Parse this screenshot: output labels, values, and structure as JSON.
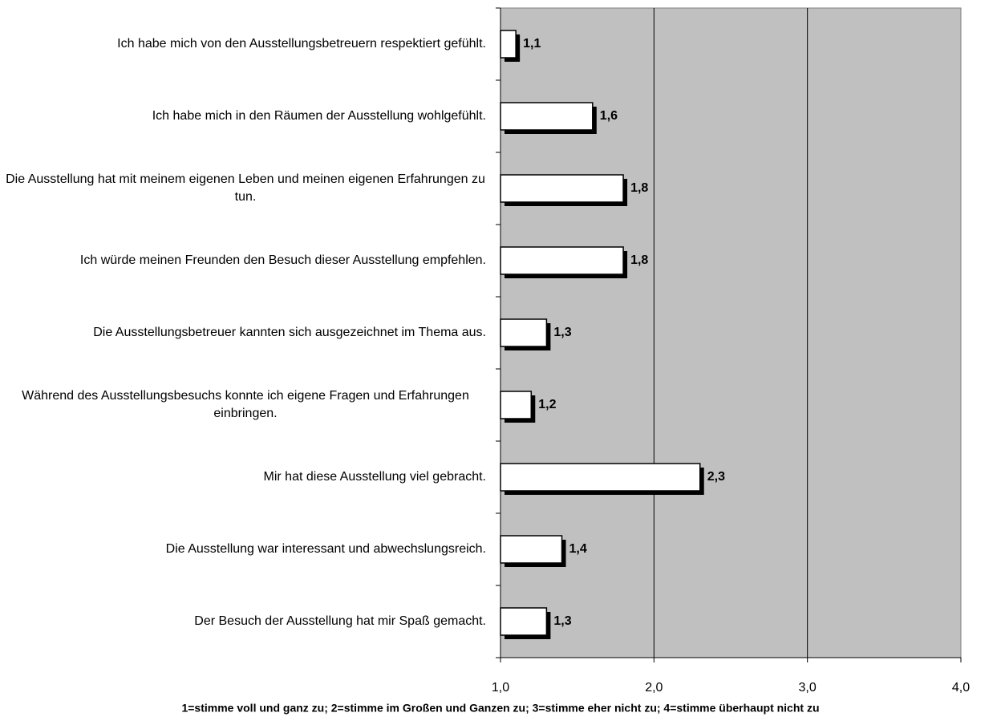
{
  "chart_data": {
    "type": "bar",
    "orientation": "horizontal",
    "categories": [
      "Ich habe mich von den Ausstellungsbetreuern respektiert gefühlt.",
      "Ich habe mich in den Räumen der Ausstellung wohlgefühlt.",
      "Die Ausstellung hat mit meinem eigenen Leben und meinen eigenen Erfahrungen zu tun.",
      "Ich würde meinen Freunden den Besuch dieser Ausstellung empfehlen.",
      "Die Ausstellungsbetreuer kannten sich ausgezeichnet im Thema aus.",
      "Während des Ausstellungsbesuchs konnte ich eigene Fragen und Erfahrungen einbringen.",
      "Mir hat diese Ausstellung viel gebracht.",
      "Die Ausstellung war interessant und abwechslungsreich.",
      "Der Besuch der Ausstellung hat mir Spaß gemacht."
    ],
    "values": [
      1.1,
      1.6,
      1.8,
      1.8,
      1.3,
      1.2,
      2.3,
      1.4,
      1.3
    ],
    "value_labels": [
      "1,1",
      "1,6",
      "1,8",
      "1,8",
      "1,3",
      "1,2",
      "2,3",
      "1,4",
      "1,3"
    ],
    "color": "#ffffff",
    "xlim": [
      1,
      4
    ],
    "xticks": [
      {
        "value": 1,
        "label": "1,0"
      },
      {
        "value": 2,
        "label": "2,0"
      },
      {
        "value": 3,
        "label": "3,0"
      },
      {
        "value": 4,
        "label": "4,0"
      }
    ],
    "grid": true,
    "annotation": "1=stimme voll und ganz zu; 2=stimme im Großen und Ganzen zu; 3=stimme eher nicht zu; 4=stimme überhaupt nicht zu"
  }
}
